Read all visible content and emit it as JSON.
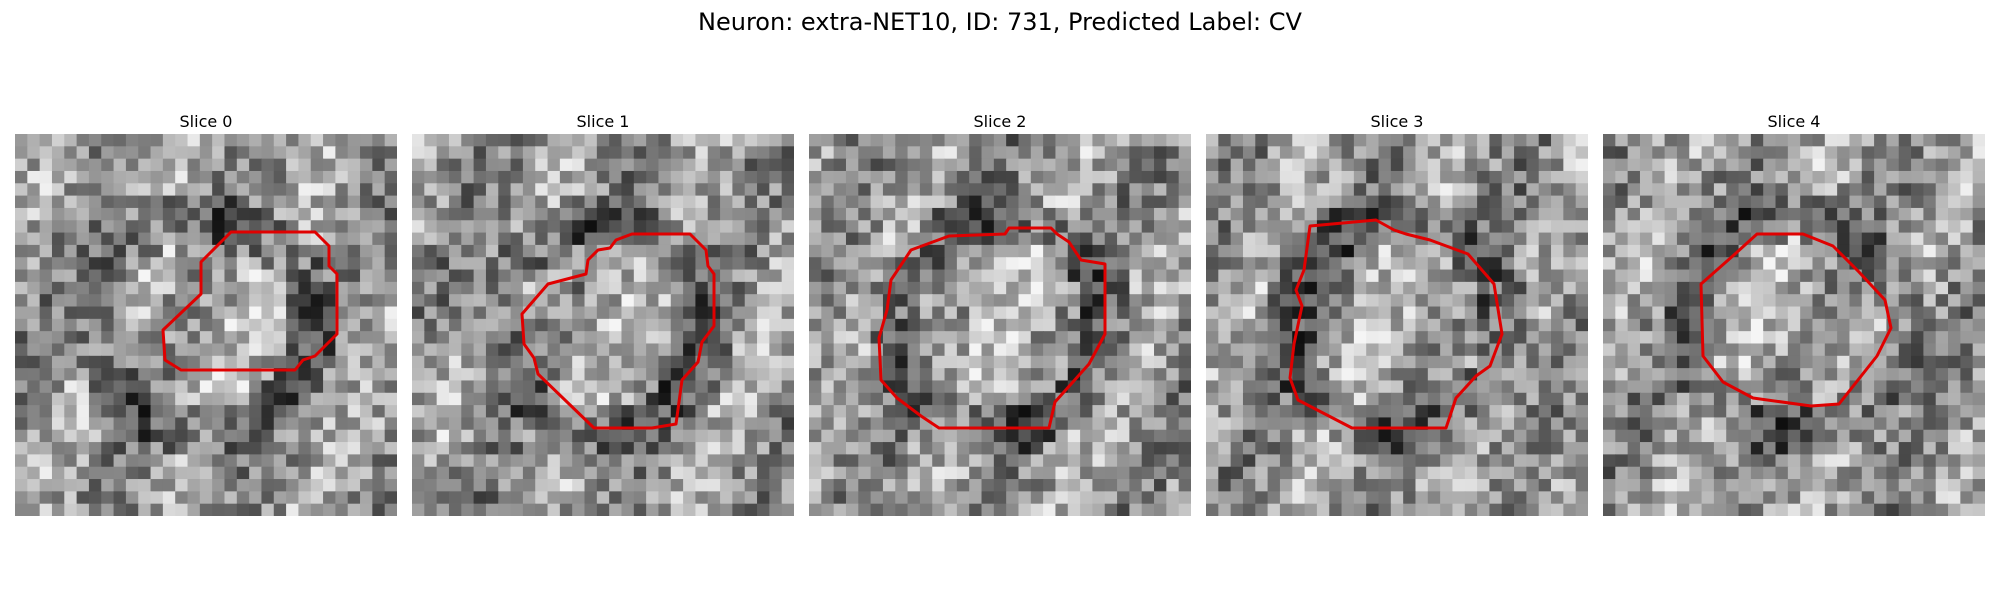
{
  "figure": {
    "title": "Neuron: extra-NET10, ID: 731, Predicted Label: CV",
    "outline_color": "#e00000"
  },
  "slices": [
    {
      "label": "Slice 0"
    },
    {
      "label": "Slice 1"
    },
    {
      "label": "Slice 2"
    },
    {
      "label": "Slice 3"
    },
    {
      "label": "Slice 4"
    }
  ]
}
